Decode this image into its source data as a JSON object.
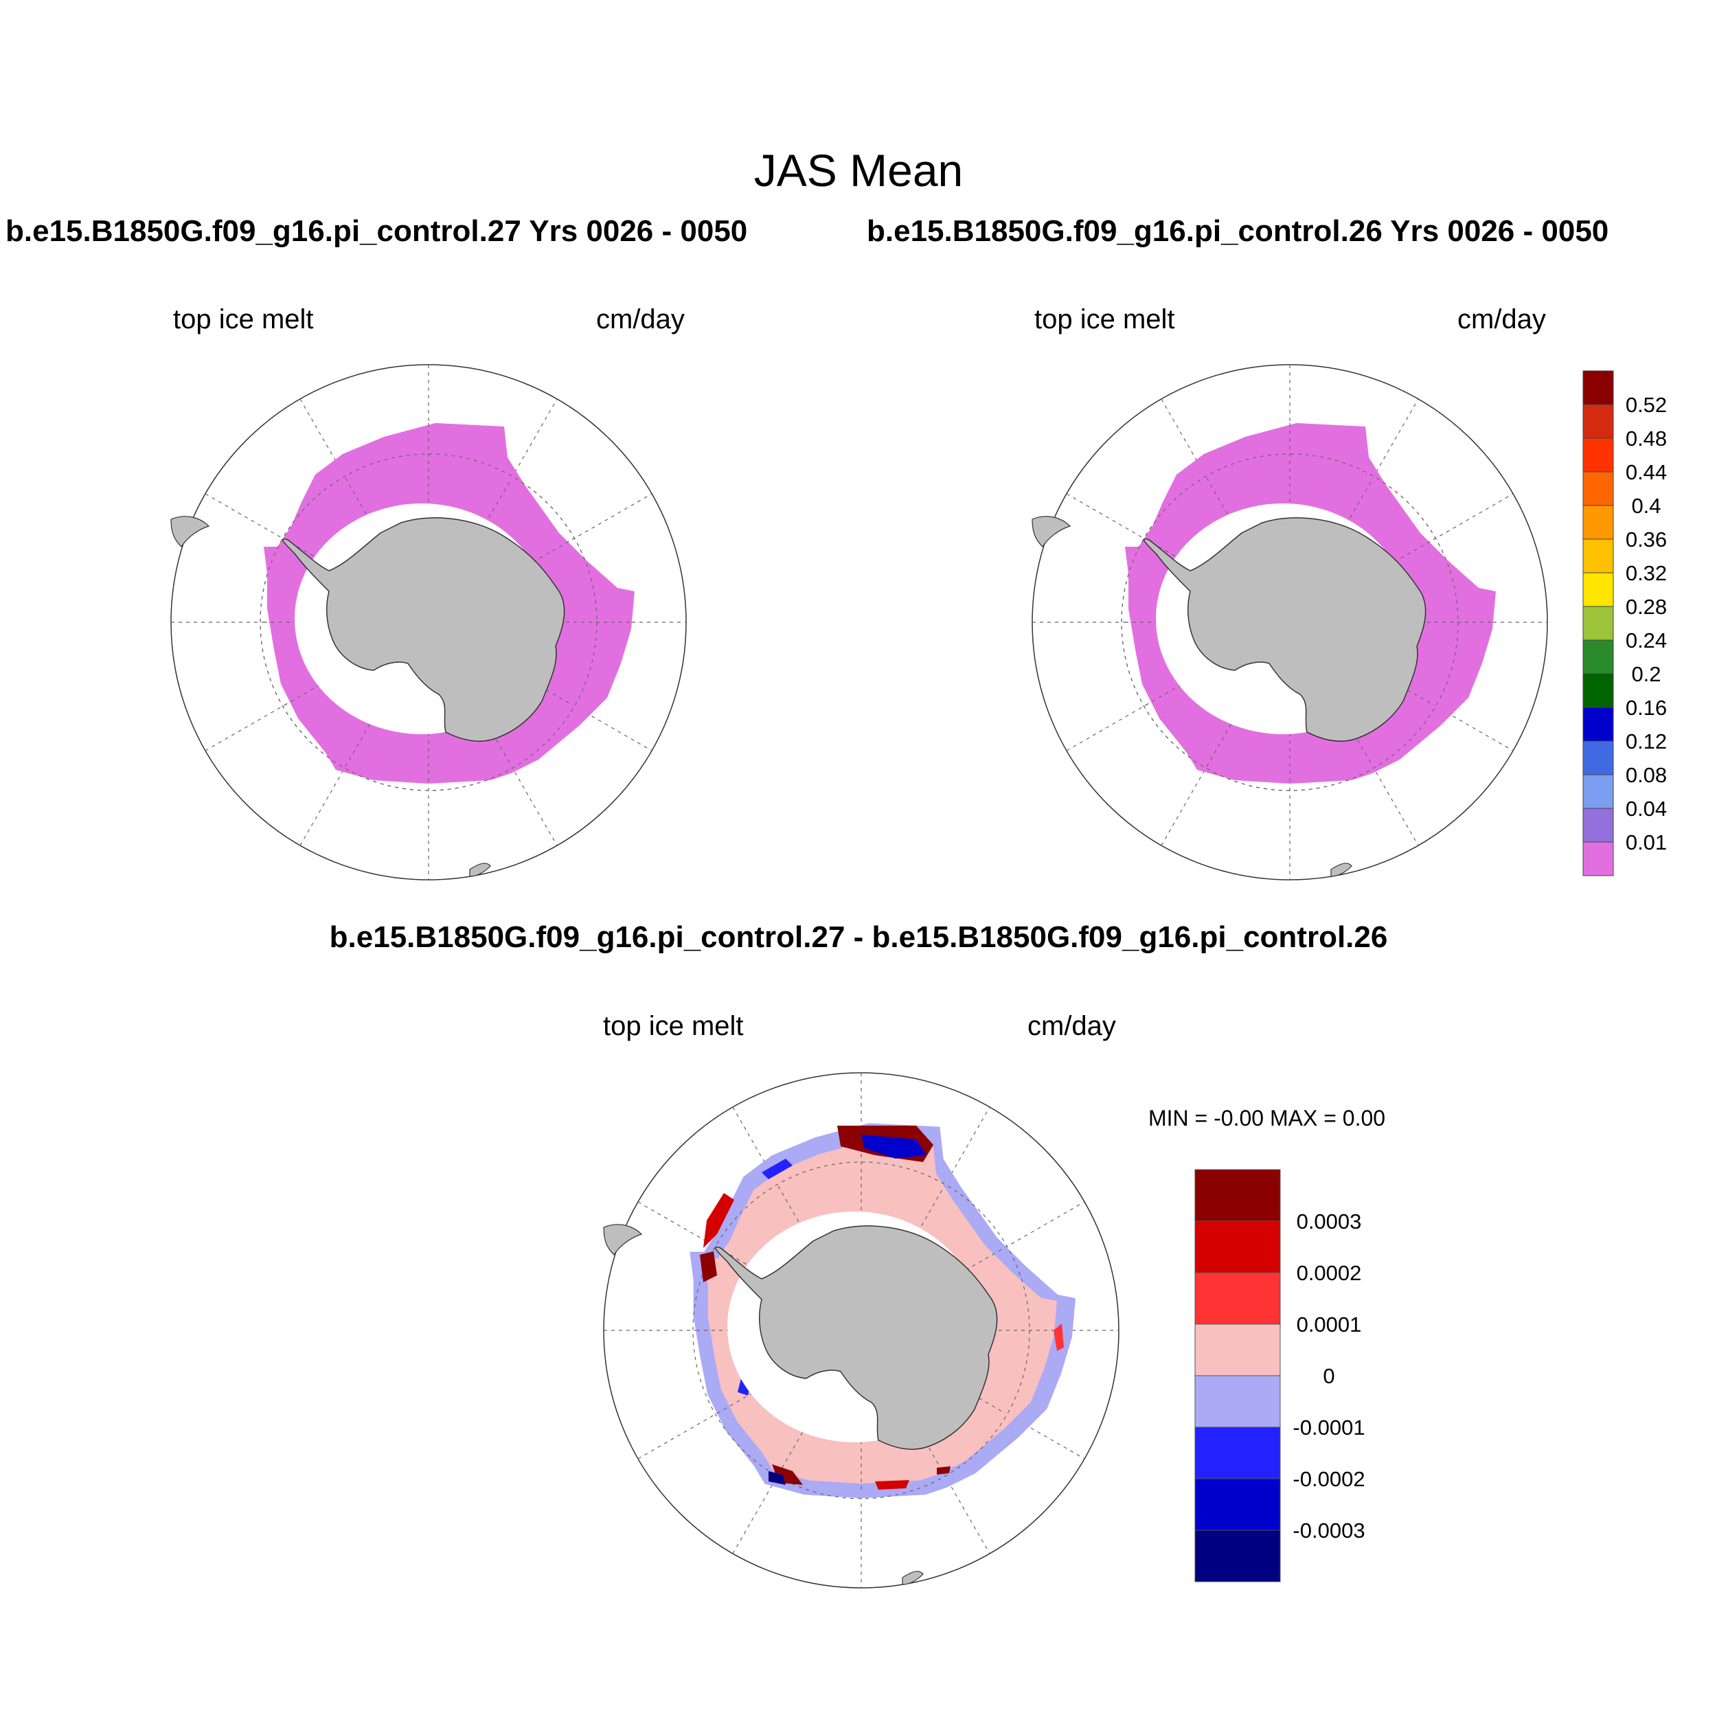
{
  "title": "JAS Mean",
  "panels": [
    {
      "title": "b.e15.B1850G.f09_g16.pi_control.27  Yrs 0026 - 0050",
      "variable": "top ice melt",
      "units": "cm/day"
    },
    {
      "title": "b.e15.B1850G.f09_g16.pi_control.26  Yrs 0026 - 0050",
      "variable": "top ice melt",
      "units": "cm/day"
    },
    {
      "title": "b.e15.B1850G.f09_g16.pi_control.27 - b.e15.B1850G.f09_g16.pi_control.26",
      "variable": "top ice melt",
      "units": "cm/day",
      "min_max": "MIN =  -0.00 MAX =   0.00"
    }
  ],
  "colorbar_top": {
    "labels": [
      "0.52",
      "0.48",
      "0.44",
      "0.4",
      "0.36",
      "0.32",
      "0.28",
      "0.24",
      "0.2",
      "0.16",
      "0.12",
      "0.08",
      "0.04",
      "0.01"
    ],
    "colors": [
      "#8b0000",
      "#d42a10",
      "#ff3300",
      "#ff6600",
      "#ff9900",
      "#ffc000",
      "#ffe500",
      "#9dc33a",
      "#2a8a2a",
      "#006400",
      "#0000cd",
      "#4169e1",
      "#7b9ef0",
      "#9370db",
      "#e26fe0"
    ]
  },
  "colorbar_diff": {
    "labels": [
      "0.0003",
      "0.0002",
      "0.0001",
      "0",
      "-0.0001",
      "-0.0002",
      "-0.0003"
    ],
    "colors": [
      "#8b0000",
      "#d40000",
      "#ff3333",
      "#f9c0c0",
      "#aaaaf5",
      "#2222ff",
      "#0000cc",
      "#000080"
    ]
  },
  "map_colors": {
    "ice_melt": "#e26fe0",
    "land": "#bebebe",
    "diff_pos": "#f9c0c0",
    "diff_neg": "#aaaaf5"
  }
}
